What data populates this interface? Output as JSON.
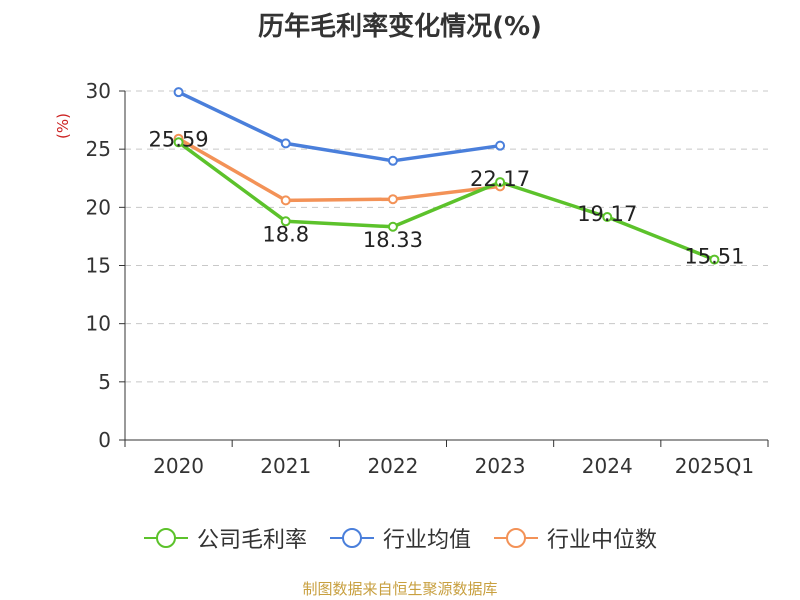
{
  "title": "历年毛利率变化情况(%)",
  "source": "制图数据来自恒生聚源数据库",
  "chart_data": {
    "type": "line",
    "categories": [
      "2020",
      "2021",
      "2022",
      "2023",
      "2024",
      "2025Q1"
    ],
    "ylabel": "(%)",
    "ylim": [
      0,
      30
    ],
    "yticks": [
      0,
      5,
      10,
      15,
      20,
      25,
      30
    ],
    "grid": true,
    "legend_position": "bottom",
    "series": [
      {
        "name": "公司毛利率",
        "color": "#5cc22b",
        "values": [
          25.59,
          18.8,
          18.33,
          22.17,
          19.17,
          15.51
        ],
        "labels": [
          "25.59",
          "18.8",
          "18.33",
          "22.17",
          "19.17",
          "15.51"
        ]
      },
      {
        "name": "行业均值",
        "color": "#4a7fdb",
        "values": [
          29.9,
          25.5,
          24.0,
          25.3,
          null,
          null
        ]
      },
      {
        "name": "行业中位数",
        "color": "#f39257",
        "values": [
          25.9,
          20.6,
          20.7,
          21.8,
          null,
          null
        ]
      }
    ]
  }
}
